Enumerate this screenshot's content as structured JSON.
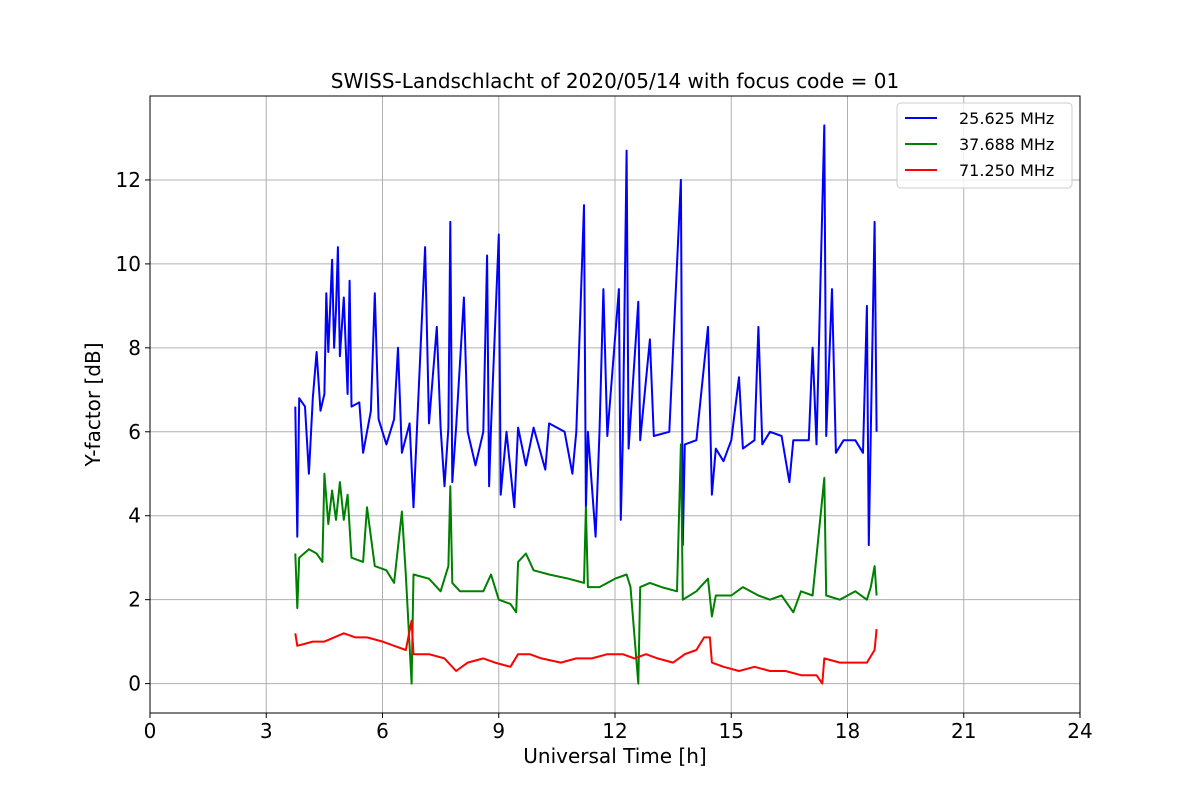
{
  "chart_data": {
    "type": "line",
    "title": "SWISS-Landschlacht of 2020/05/14 with focus code = 01",
    "xlabel": "Universal Time [h]",
    "ylabel": "Y-factor [dB]",
    "xlim": [
      0,
      24
    ],
    "ylim": [
      -0.7,
      14.0
    ],
    "xticks": [
      0,
      3,
      6,
      9,
      12,
      15,
      18,
      21,
      24
    ],
    "xtick_labels": [
      "0",
      "3",
      "6",
      "9",
      "12",
      "15",
      "18",
      "21",
      "24"
    ],
    "yticks": [
      0,
      2,
      4,
      6,
      8,
      10,
      12
    ],
    "ytick_labels": [
      "0",
      "2",
      "4",
      "6",
      "8",
      "10",
      "12"
    ],
    "grid": true,
    "legend_position": "top-right",
    "series": [
      {
        "name": "25.625 MHz",
        "color": "#0000ff",
        "points": [
          [
            3.75,
            6.6
          ],
          [
            3.8,
            3.5
          ],
          [
            3.85,
            6.8
          ],
          [
            4.0,
            6.6
          ],
          [
            4.1,
            5.0
          ],
          [
            4.2,
            6.8
          ],
          [
            4.3,
            7.9
          ],
          [
            4.4,
            6.5
          ],
          [
            4.5,
            6.9
          ],
          [
            4.55,
            9.3
          ],
          [
            4.6,
            7.9
          ],
          [
            4.7,
            10.1
          ],
          [
            4.75,
            8.0
          ],
          [
            4.8,
            8.9
          ],
          [
            4.85,
            10.4
          ],
          [
            4.9,
            7.8
          ],
          [
            5.0,
            9.2
          ],
          [
            5.1,
            6.9
          ],
          [
            5.15,
            9.6
          ],
          [
            5.2,
            6.6
          ],
          [
            5.4,
            6.7
          ],
          [
            5.5,
            5.5
          ],
          [
            5.7,
            6.5
          ],
          [
            5.8,
            9.3
          ],
          [
            5.9,
            6.3
          ],
          [
            6.1,
            5.7
          ],
          [
            6.3,
            6.3
          ],
          [
            6.4,
            8.0
          ],
          [
            6.5,
            5.5
          ],
          [
            6.7,
            6.2
          ],
          [
            6.8,
            4.2
          ],
          [
            6.9,
            6.3
          ],
          [
            7.1,
            10.4
          ],
          [
            7.2,
            6.2
          ],
          [
            7.4,
            8.5
          ],
          [
            7.5,
            6.1
          ],
          [
            7.6,
            4.7
          ],
          [
            7.7,
            6.1
          ],
          [
            7.75,
            11.0
          ],
          [
            7.8,
            4.8
          ],
          [
            7.9,
            6.1
          ],
          [
            8.1,
            9.2
          ],
          [
            8.2,
            6.0
          ],
          [
            8.4,
            5.2
          ],
          [
            8.6,
            6.0
          ],
          [
            8.7,
            10.2
          ],
          [
            8.75,
            4.7
          ],
          [
            8.8,
            6.1
          ],
          [
            9.0,
            10.7
          ],
          [
            9.05,
            4.5
          ],
          [
            9.2,
            6.0
          ],
          [
            9.4,
            4.2
          ],
          [
            9.5,
            6.1
          ],
          [
            9.7,
            5.2
          ],
          [
            9.9,
            6.1
          ],
          [
            10.2,
            5.1
          ],
          [
            10.3,
            6.2
          ],
          [
            10.7,
            6.0
          ],
          [
            10.9,
            5.0
          ],
          [
            11.0,
            6.0
          ],
          [
            11.2,
            11.4
          ],
          [
            11.25,
            4.2
          ],
          [
            11.3,
            6.0
          ],
          [
            11.5,
            3.5
          ],
          [
            11.6,
            6.0
          ],
          [
            11.7,
            9.4
          ],
          [
            11.8,
            5.9
          ],
          [
            12.1,
            9.4
          ],
          [
            12.15,
            3.9
          ],
          [
            12.2,
            5.8
          ],
          [
            12.3,
            12.7
          ],
          [
            12.35,
            5.6
          ],
          [
            12.6,
            9.1
          ],
          [
            12.65,
            5.8
          ],
          [
            12.9,
            8.2
          ],
          [
            13.0,
            5.9
          ],
          [
            13.4,
            6.0
          ],
          [
            13.7,
            12.0
          ],
          [
            13.75,
            3.3
          ],
          [
            13.8,
            5.7
          ],
          [
            14.1,
            5.8
          ],
          [
            14.4,
            8.5
          ],
          [
            14.5,
            4.5
          ],
          [
            14.6,
            5.6
          ],
          [
            14.8,
            5.3
          ],
          [
            15.0,
            5.8
          ],
          [
            15.2,
            7.3
          ],
          [
            15.3,
            5.6
          ],
          [
            15.6,
            5.8
          ],
          [
            15.7,
            8.5
          ],
          [
            15.8,
            5.7
          ],
          [
            16.0,
            6.0
          ],
          [
            16.3,
            5.9
          ],
          [
            16.5,
            4.8
          ],
          [
            16.6,
            5.8
          ],
          [
            17.0,
            5.8
          ],
          [
            17.1,
            8.0
          ],
          [
            17.2,
            5.7
          ],
          [
            17.4,
            13.3
          ],
          [
            17.45,
            5.9
          ],
          [
            17.6,
            9.4
          ],
          [
            17.7,
            5.5
          ],
          [
            17.9,
            5.8
          ],
          [
            18.2,
            5.8
          ],
          [
            18.4,
            5.5
          ],
          [
            18.5,
            9.0
          ],
          [
            18.55,
            3.3
          ],
          [
            18.6,
            6.0
          ],
          [
            18.7,
            11.0
          ],
          [
            18.75,
            6.0
          ]
        ]
      },
      {
        "name": "37.688 MHz",
        "color": "#008000",
        "points": [
          [
            3.75,
            3.1
          ],
          [
            3.8,
            1.8
          ],
          [
            3.85,
            3.0
          ],
          [
            4.1,
            3.2
          ],
          [
            4.3,
            3.1
          ],
          [
            4.45,
            2.9
          ],
          [
            4.5,
            5.0
          ],
          [
            4.6,
            3.8
          ],
          [
            4.7,
            4.6
          ],
          [
            4.8,
            3.9
          ],
          [
            4.9,
            4.8
          ],
          [
            5.0,
            3.9
          ],
          [
            5.1,
            4.5
          ],
          [
            5.2,
            3.0
          ],
          [
            5.5,
            2.9
          ],
          [
            5.6,
            4.2
          ],
          [
            5.8,
            2.8
          ],
          [
            6.1,
            2.7
          ],
          [
            6.3,
            2.4
          ],
          [
            6.5,
            4.1
          ],
          [
            6.6,
            2.6
          ],
          [
            6.75,
            0.0
          ],
          [
            6.8,
            2.6
          ],
          [
            7.2,
            2.5
          ],
          [
            7.5,
            2.2
          ],
          [
            7.7,
            2.8
          ],
          [
            7.75,
            4.7
          ],
          [
            7.8,
            2.4
          ],
          [
            8.0,
            2.2
          ],
          [
            8.3,
            2.2
          ],
          [
            8.6,
            2.2
          ],
          [
            8.8,
            2.6
          ],
          [
            9.0,
            2.0
          ],
          [
            9.3,
            1.9
          ],
          [
            9.45,
            1.7
          ],
          [
            9.5,
            2.9
          ],
          [
            9.7,
            3.1
          ],
          [
            9.9,
            2.7
          ],
          [
            10.3,
            2.6
          ],
          [
            10.8,
            2.5
          ],
          [
            11.2,
            2.4
          ],
          [
            11.25,
            4.2
          ],
          [
            11.3,
            2.3
          ],
          [
            11.6,
            2.3
          ],
          [
            12.0,
            2.5
          ],
          [
            12.3,
            2.6
          ],
          [
            12.4,
            2.3
          ],
          [
            12.6,
            0.0
          ],
          [
            12.65,
            2.3
          ],
          [
            12.9,
            2.4
          ],
          [
            13.2,
            2.3
          ],
          [
            13.6,
            2.2
          ],
          [
            13.7,
            5.7
          ],
          [
            13.75,
            2.0
          ],
          [
            14.1,
            2.2
          ],
          [
            14.4,
            2.5
          ],
          [
            14.5,
            1.6
          ],
          [
            14.6,
            2.1
          ],
          [
            15.0,
            2.1
          ],
          [
            15.3,
            2.3
          ],
          [
            15.7,
            2.1
          ],
          [
            16.0,
            2.0
          ],
          [
            16.3,
            2.1
          ],
          [
            16.6,
            1.7
          ],
          [
            16.8,
            2.2
          ],
          [
            17.1,
            2.1
          ],
          [
            17.4,
            4.9
          ],
          [
            17.45,
            2.1
          ],
          [
            17.8,
            2.0
          ],
          [
            18.2,
            2.2
          ],
          [
            18.5,
            2.0
          ],
          [
            18.6,
            2.3
          ],
          [
            18.7,
            2.8
          ],
          [
            18.75,
            2.1
          ]
        ]
      },
      {
        "name": "71.250 MHz",
        "color": "#ff0000",
        "points": [
          [
            3.75,
            1.2
          ],
          [
            3.8,
            0.9
          ],
          [
            4.2,
            1.0
          ],
          [
            4.5,
            1.0
          ],
          [
            5.0,
            1.2
          ],
          [
            5.3,
            1.1
          ],
          [
            5.6,
            1.1
          ],
          [
            6.0,
            1.0
          ],
          [
            6.3,
            0.9
          ],
          [
            6.6,
            0.8
          ],
          [
            6.75,
            1.5
          ],
          [
            6.8,
            0.7
          ],
          [
            7.2,
            0.7
          ],
          [
            7.6,
            0.6
          ],
          [
            7.9,
            0.3
          ],
          [
            8.2,
            0.5
          ],
          [
            8.6,
            0.6
          ],
          [
            8.9,
            0.5
          ],
          [
            9.3,
            0.4
          ],
          [
            9.5,
            0.7
          ],
          [
            9.8,
            0.7
          ],
          [
            10.1,
            0.6
          ],
          [
            10.6,
            0.5
          ],
          [
            11.0,
            0.6
          ],
          [
            11.4,
            0.6
          ],
          [
            11.8,
            0.7
          ],
          [
            12.2,
            0.7
          ],
          [
            12.5,
            0.6
          ],
          [
            12.8,
            0.7
          ],
          [
            13.1,
            0.6
          ],
          [
            13.5,
            0.5
          ],
          [
            13.8,
            0.7
          ],
          [
            14.1,
            0.8
          ],
          [
            14.3,
            1.1
          ],
          [
            14.45,
            1.1
          ],
          [
            14.5,
            0.5
          ],
          [
            14.8,
            0.4
          ],
          [
            15.2,
            0.3
          ],
          [
            15.6,
            0.4
          ],
          [
            16.0,
            0.3
          ],
          [
            16.4,
            0.3
          ],
          [
            16.8,
            0.2
          ],
          [
            17.2,
            0.2
          ],
          [
            17.35,
            0.0
          ],
          [
            17.4,
            0.6
          ],
          [
            17.8,
            0.5
          ],
          [
            18.2,
            0.5
          ],
          [
            18.5,
            0.5
          ],
          [
            18.7,
            0.8
          ],
          [
            18.75,
            1.3
          ]
        ]
      }
    ]
  }
}
